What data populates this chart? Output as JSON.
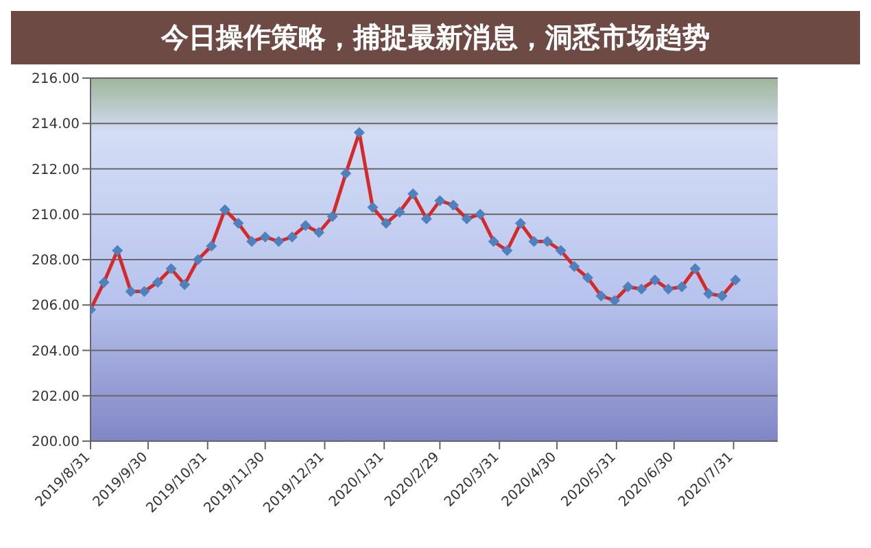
{
  "chart_data": {
    "type": "line",
    "title": "今日操作策略，捕捉最新消息，洞悉市场趋势",
    "x": [
      "2019-08-31",
      "2019-09-07",
      "2019-09-14",
      "2019-09-21",
      "2019-09-28",
      "2019-10-05",
      "2019-10-12",
      "2019-10-19",
      "2019-10-26",
      "2019-11-02",
      "2019-11-09",
      "2019-11-16",
      "2019-11-23",
      "2019-11-30",
      "2019-12-07",
      "2019-12-14",
      "2019-12-21",
      "2019-12-28",
      "2020-01-04",
      "2020-01-11",
      "2020-01-18",
      "2020-01-25",
      "2020-02-01",
      "2020-02-08",
      "2020-02-15",
      "2020-02-22",
      "2020-02-29",
      "2020-03-07",
      "2020-03-14",
      "2020-03-21",
      "2020-03-28",
      "2020-04-04",
      "2020-04-11",
      "2020-04-18",
      "2020-04-25",
      "2020-05-02",
      "2020-05-09",
      "2020-05-16",
      "2020-05-23",
      "2020-05-30",
      "2020-06-06",
      "2020-06-13",
      "2020-06-20",
      "2020-06-27",
      "2020-07-04",
      "2020-07-11",
      "2020-07-18",
      "2020-07-25",
      "2020-08-01"
    ],
    "series": [
      {
        "color": "#d42a2a",
        "values": [
          205.8,
          207.0,
          208.4,
          206.6,
          206.6,
          207.0,
          207.6,
          206.9,
          208.0,
          208.6,
          210.2,
          209.6,
          208.8,
          209.0,
          208.8,
          209.0,
          209.5,
          209.2,
          209.9,
          211.8,
          213.6,
          210.3,
          209.6,
          210.1,
          210.9,
          209.8,
          210.6,
          210.4,
          209.8,
          210.0,
          208.8,
          208.4,
          209.6,
          208.8,
          208.8,
          208.4,
          207.7,
          207.2,
          206.4,
          206.2,
          206.8,
          206.7,
          207.1,
          206.7,
          206.8,
          207.6,
          206.5,
          206.4,
          207.1
        ]
      }
    ],
    "xlim": [
      "2019-08-31",
      "2020-08-23"
    ],
    "xticks": [
      {
        "value": "2019-08-31",
        "label": "2019/8/31"
      },
      {
        "value": "2019-09-30",
        "label": "2019/9/30"
      },
      {
        "value": "2019-10-31",
        "label": "2019/10/31"
      },
      {
        "value": "2019-11-30",
        "label": "2019/11/30"
      },
      {
        "value": "2019-12-31",
        "label": "2019/12/31"
      },
      {
        "value": "2020-01-31",
        "label": "2020/1/31"
      },
      {
        "value": "2020-02-29",
        "label": "2020/2/29"
      },
      {
        "value": "2020-03-31",
        "label": "2020/3/31"
      },
      {
        "value": "2020-04-30",
        "label": "2020/4/30"
      },
      {
        "value": "2020-05-31",
        "label": "2020/5/31"
      },
      {
        "value": "2020-06-30",
        "label": "2020/6/30"
      },
      {
        "value": "2020-07-31",
        "label": "2020/7/31"
      }
    ],
    "ylim": [
      200,
      216
    ],
    "yticks": [
      {
        "value": 200,
        "label": "200.00"
      },
      {
        "value": 202,
        "label": "202.00"
      },
      {
        "value": 204,
        "label": "204.00"
      },
      {
        "value": 206,
        "label": "206.00"
      },
      {
        "value": 208,
        "label": "208.00"
      },
      {
        "value": 210,
        "label": "210.00"
      },
      {
        "value": 212,
        "label": "212.00"
      },
      {
        "value": 214,
        "label": "214.00"
      },
      {
        "value": 216,
        "label": "216.00"
      }
    ],
    "grid": "y",
    "marker": "diamond",
    "line_style": "solid"
  }
}
